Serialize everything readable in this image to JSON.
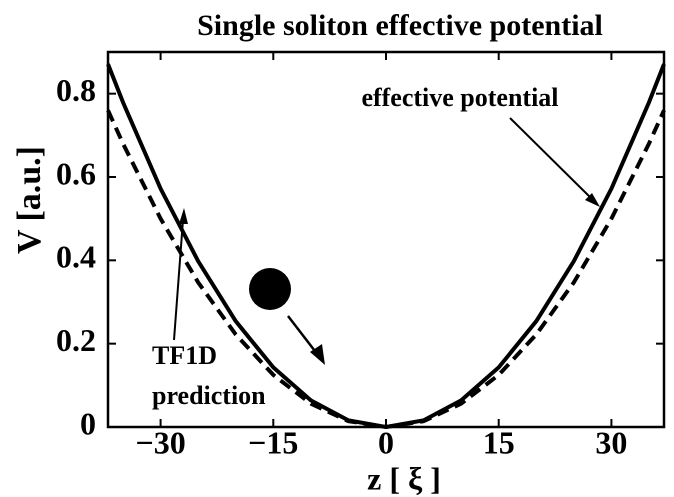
{
  "chart_data": {
    "type": "line",
    "title": "Single soliton effective potential",
    "xlabel": "z [ ξ ]",
    "ylabel": "V [a.u.]",
    "x": [
      -37,
      -35,
      -30,
      -25,
      -20,
      -15,
      -10,
      -5,
      0,
      5,
      10,
      15,
      20,
      25,
      30,
      35,
      37
    ],
    "series": [
      {
        "name": "effective potential",
        "color": "#000000",
        "dash": false,
        "values": [
          0.871,
          0.779,
          0.572,
          0.398,
          0.254,
          0.143,
          0.064,
          0.016,
          0,
          0.016,
          0.064,
          0.143,
          0.254,
          0.398,
          0.572,
          0.779,
          0.871
        ]
      },
      {
        "name": "TF1D prediction",
        "color": "#000000",
        "dash": true,
        "values": [
          0.76,
          0.68,
          0.5,
          0.347,
          0.222,
          0.125,
          0.056,
          0.014,
          0,
          0.014,
          0.056,
          0.125,
          0.222,
          0.347,
          0.5,
          0.68,
          0.76
        ]
      }
    ],
    "annotations": [
      "effective potential",
      "TF1D",
      "prediction"
    ],
    "xlim": [
      -37,
      37
    ],
    "ylim": [
      0,
      0.9
    ],
    "xticks": [
      {
        "value": -30,
        "label": "−30"
      },
      {
        "value": -15,
        "label": "−15"
      },
      0,
      15,
      30
    ],
    "yticks": [
      0,
      0.2,
      0.4,
      0.6,
      0.8
    ],
    "grid": false
  }
}
